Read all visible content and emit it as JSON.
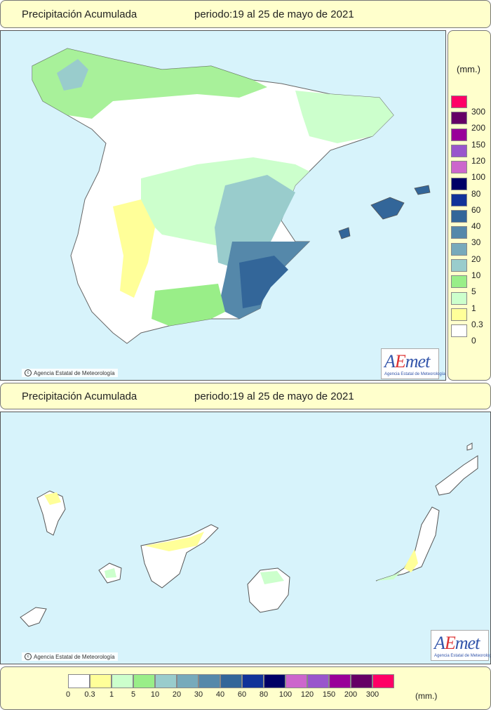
{
  "header_top": {
    "title": "Precipitación Acumulada",
    "period": "periodo:19 al 25 de mayo de 2021"
  },
  "header_bottom": {
    "title": "Precipitación Acumulada",
    "period": "periodo:19 al 25 de mayo de 2021"
  },
  "credit": "Agencia Estatal de Meteorología",
  "logo": {
    "word_a": "A",
    "word_e": "E",
    "word_rest": "met",
    "sub": "Agencia Estatal de Meteorología"
  },
  "legend": {
    "unit": "(mm.)",
    "classes": [
      {
        "label": "0",
        "color": "#ffffff"
      },
      {
        "label": "0.3",
        "color": "#ffff99"
      },
      {
        "label": "1",
        "color": "#ccffcc"
      },
      {
        "label": "5",
        "color": "#99ee88"
      },
      {
        "label": "10",
        "color": "#99cccc"
      },
      {
        "label": "20",
        "color": "#77aabb"
      },
      {
        "label": "30",
        "color": "#5588aa"
      },
      {
        "label": "40",
        "color": "#336699"
      },
      {
        "label": "60",
        "color": "#113399"
      },
      {
        "label": "80",
        "color": "#000066"
      },
      {
        "label": "100",
        "color": "#cc66cc"
      },
      {
        "label": "120",
        "color": "#9955cc"
      },
      {
        "label": "150",
        "color": "#990099"
      },
      {
        "label": "200",
        "color": "#660066"
      },
      {
        "label": "300",
        "color": "#ff0066"
      }
    ]
  },
  "colors": {
    "sea": "#d7f3fb",
    "panel": "#ffffcc"
  }
}
